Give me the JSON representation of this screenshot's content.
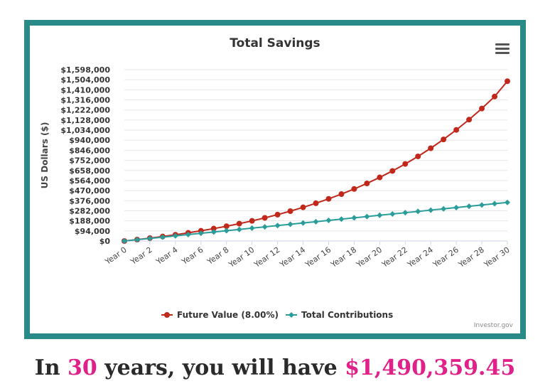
{
  "summary": {
    "prefix": "In ",
    "years": "30",
    "middle": " years, you will have ",
    "amount": "$1,490,359.45",
    "highlight_color": "#e0218a"
  },
  "menu_icon": "hamburger-menu-icon",
  "credit": "Investor.gov",
  "chart_data": {
    "type": "line",
    "title": "Total Savings",
    "ylabel": "US Dollars ($)",
    "xlabel": "",
    "ylim": [
      0,
      1598000
    ],
    "yticks": [
      0,
      94000,
      188000,
      282000,
      376000,
      470000,
      564000,
      658000,
      752000,
      846000,
      940000,
      1034000,
      1128000,
      1222000,
      1316000,
      1410000,
      1504000,
      1598000
    ],
    "ytick_labels": [
      "$0",
      "$94,000",
      "$188,000",
      "$282,000",
      "$376,000",
      "$470,000",
      "$564,000",
      "$658,000",
      "$752,000",
      "$846,000",
      "$940,000",
      "$1,034,000",
      "$1,128,000",
      "$1,222,000",
      "$1,316,000",
      "$1,410,000",
      "$1,504,000",
      "$1,598,000"
    ],
    "categories": [
      "Year 0",
      "Year 1",
      "Year 2",
      "Year 3",
      "Year 4",
      "Year 5",
      "Year 6",
      "Year 7",
      "Year 8",
      "Year 9",
      "Year 10",
      "Year 11",
      "Year 12",
      "Year 13",
      "Year 14",
      "Year 15",
      "Year 16",
      "Year 17",
      "Year 18",
      "Year 19",
      "Year 20",
      "Year 21",
      "Year 22",
      "Year 23",
      "Year 24",
      "Year 25",
      "Year 26",
      "Year 27",
      "Year 28",
      "Year 29",
      "Year 30"
    ],
    "xtick_labels_shown": [
      "Year 0",
      "Year 2",
      "Year 4",
      "Year 6",
      "Year 8",
      "Year 10",
      "Year 12",
      "Year 14",
      "Year 16",
      "Year 18",
      "Year 20",
      "Year 22",
      "Year 24",
      "Year 26",
      "Year 28",
      "Year 30"
    ],
    "grid": true,
    "legend_position": "bottom",
    "series": [
      {
        "name": "Future Value (8.00%)",
        "color": "#c0281c",
        "marker": "circle",
        "values": [
          0,
          12960,
          26957,
          42073,
          58399,
          76031,
          95073,
          115639,
          137850,
          161838,
          187745,
          215724,
          245942,
          278578,
          313824,
          351890,
          393001,
          437401,
          485353,
          537141,
          593072,
          653478,
          718716,
          789173,
          865267,
          947448,
          1036204,
          1132060,
          1235585,
          1347392,
          1490359
        ]
      },
      {
        "name": "Total Contributions",
        "color": "#2a9d9b",
        "marker": "diamond",
        "values": [
          0,
          12000,
          24000,
          36000,
          48000,
          60000,
          72000,
          84000,
          96000,
          108000,
          120000,
          132000,
          144000,
          156000,
          168000,
          180000,
          192000,
          204000,
          216000,
          228000,
          240000,
          252000,
          264000,
          276000,
          288000,
          300000,
          312000,
          324000,
          336000,
          348000,
          360000
        ]
      }
    ]
  }
}
